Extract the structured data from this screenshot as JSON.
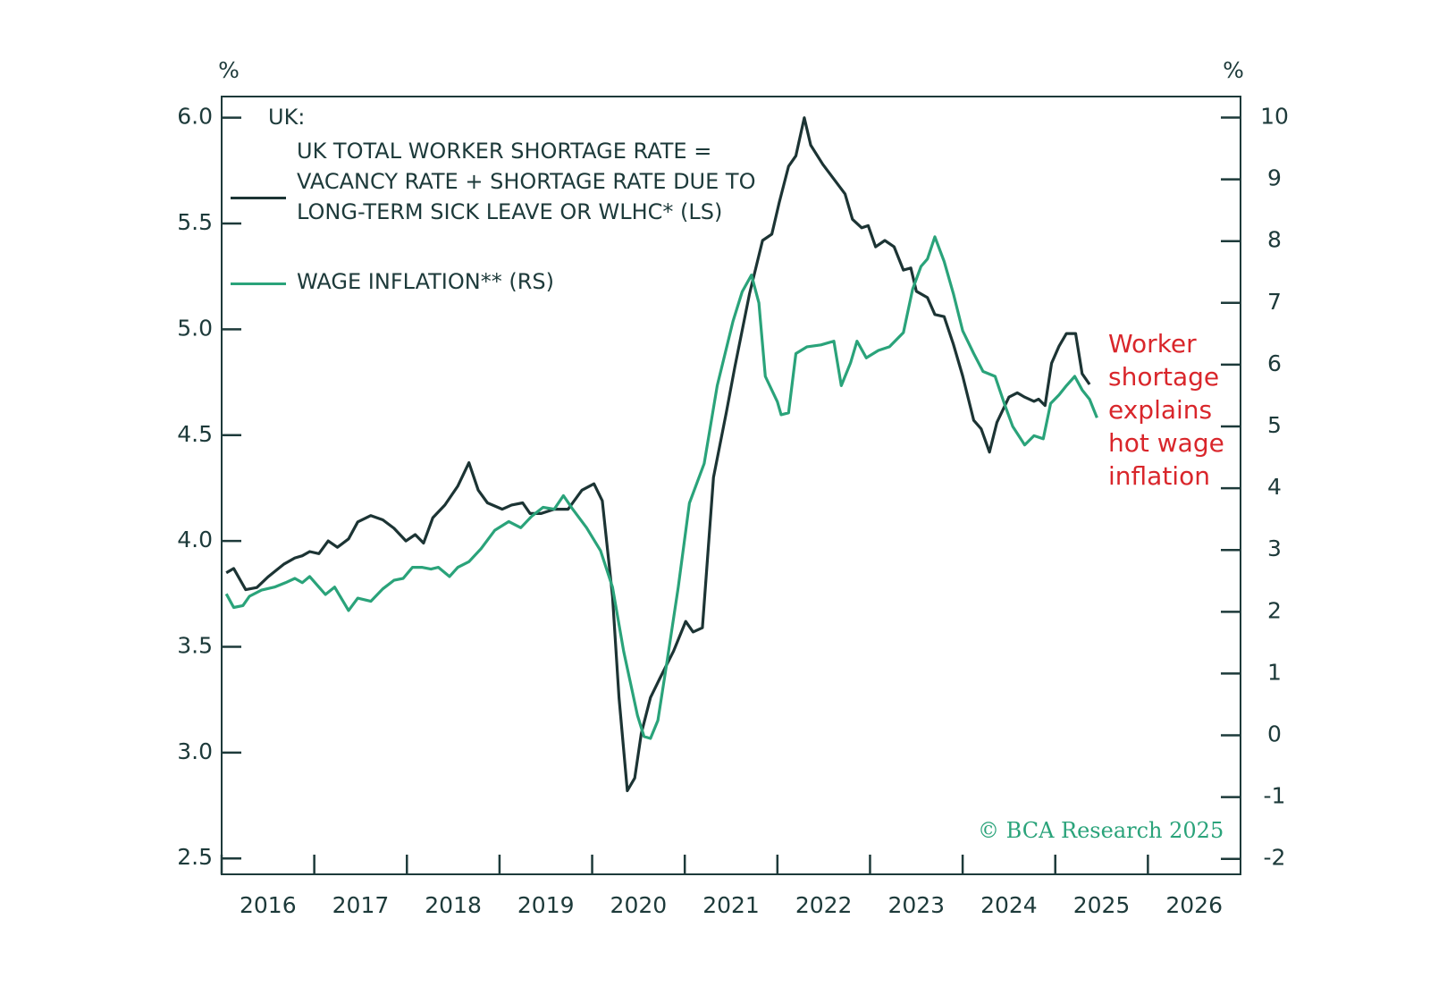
{
  "chart_data": {
    "type": "line",
    "ylabel": "%",
    "y2label": "%",
    "legend_title": "UK:",
    "annotation": "Worker shortage explains hot wage inflation",
    "source": "© BCA Research 2025",
    "xlim": [
      2016,
      2027
    ],
    "xticks": [
      2016,
      2017,
      2018,
      2019,
      2020,
      2021,
      2022,
      2023,
      2024,
      2025,
      2026
    ],
    "ylim": [
      2.425,
      6.1
    ],
    "yticks": [
      {
        "value": 6,
        "label": "6.0"
      },
      5.5,
      {
        "value": 5,
        "label": "5.0"
      },
      4.5,
      {
        "value": 4,
        "label": "4.0"
      },
      3.5,
      {
        "value": 3,
        "label": "3.0"
      },
      2.5
    ],
    "y2lim": [
      -2.25,
      10.34
    ],
    "y2ticks": [
      10,
      9,
      8,
      7,
      6,
      5,
      4,
      3,
      2,
      1,
      0,
      -1,
      -2
    ],
    "series": [
      {
        "name": "UK TOTAL WORKER SHORTAGE RATE = VACANCY RATE + SHORTAGE RATE DUE TO LONG-TERM SICK LEAVE OR WLHC* (LS)",
        "color": "#1c3434",
        "axis": "y",
        "x": [
          2016.05,
          2016.13,
          2016.26,
          2016.38,
          2016.5,
          2016.67,
          2016.79,
          2016.87,
          2016.95,
          2017.05,
          2017.15,
          2017.25,
          2017.37,
          2017.47,
          2017.61,
          2017.74,
          2017.86,
          2017.99,
          2018.09,
          2018.18,
          2018.28,
          2018.41,
          2018.55,
          2018.67,
          2018.77,
          2018.87,
          2019.03,
          2019.13,
          2019.25,
          2019.33,
          2019.45,
          2019.59,
          2019.74,
          2019.89,
          2020.02,
          2020.11,
          2020.22,
          2020.29,
          2020.38,
          2020.46,
          2020.53,
          2020.63,
          2020.73,
          2020.88,
          2021.01,
          2021.09,
          2021.19,
          2021.31,
          2021.45,
          2021.54,
          2021.7,
          2021.84,
          2021.94,
          2022.02,
          2022.12,
          2022.2,
          2022.29,
          2022.36,
          2022.49,
          2022.61,
          2022.73,
          2022.81,
          2022.91,
          2022.98,
          2023.06,
          2023.16,
          2023.26,
          2023.36,
          2023.44,
          2023.5,
          2023.62,
          2023.7,
          2023.8,
          2023.9,
          2024.0,
          2024.12,
          2024.2,
          2024.29,
          2024.37,
          2024.5,
          2024.59,
          2024.67,
          2024.77,
          2024.82,
          2024.89,
          2024.96,
          2025.04,
          2025.12,
          2025.22,
          2025.29,
          2025.37
        ],
        "values": [
          3.85,
          3.87,
          3.77,
          3.78,
          3.83,
          3.89,
          3.92,
          3.93,
          3.95,
          3.94,
          4.0,
          3.97,
          4.01,
          4.09,
          4.12,
          4.1,
          4.06,
          4.0,
          4.03,
          3.99,
          4.11,
          4.17,
          4.26,
          4.37,
          4.24,
          4.18,
          4.15,
          4.17,
          4.18,
          4.13,
          4.13,
          4.15,
          4.15,
          4.24,
          4.27,
          4.19,
          3.74,
          3.26,
          2.82,
          2.88,
          3.09,
          3.26,
          3.35,
          3.48,
          3.62,
          3.57,
          3.59,
          4.3,
          4.61,
          4.82,
          5.17,
          5.42,
          5.45,
          5.6,
          5.77,
          5.82,
          6.0,
          5.87,
          5.78,
          5.71,
          5.64,
          5.52,
          5.48,
          5.49,
          5.39,
          5.42,
          5.39,
          5.28,
          5.29,
          5.18,
          5.15,
          5.07,
          5.06,
          4.93,
          4.78,
          4.57,
          4.53,
          4.42,
          4.56,
          4.68,
          4.7,
          4.68,
          4.66,
          4.67,
          4.64,
          4.84,
          4.92,
          4.98,
          4.98,
          4.79,
          4.74
        ]
      },
      {
        "name": "WAGE INFLATION** (RS)",
        "color": "#2aa37a",
        "axis": "y2",
        "x": [
          2016.05,
          2016.13,
          2016.23,
          2016.3,
          2016.43,
          2016.57,
          2016.69,
          2016.79,
          2016.87,
          2016.95,
          2017.05,
          2017.12,
          2017.22,
          2017.37,
          2017.47,
          2017.61,
          2017.74,
          2017.86,
          2017.96,
          2018.06,
          2018.16,
          2018.26,
          2018.34,
          2018.46,
          2018.55,
          2018.67,
          2018.8,
          2018.95,
          2019.1,
          2019.23,
          2019.35,
          2019.47,
          2019.59,
          2019.69,
          2019.79,
          2019.94,
          2020.09,
          2020.22,
          2020.34,
          2020.49,
          2020.56,
          2020.63,
          2020.71,
          2020.81,
          2020.93,
          2021.05,
          2021.21,
          2021.35,
          2021.52,
          2021.62,
          2021.72,
          2021.8,
          2021.87,
          2022.0,
          2022.04,
          2022.12,
          2022.2,
          2022.32,
          2022.47,
          2022.61,
          2022.69,
          2022.79,
          2022.86,
          2022.96,
          2023.09,
          2023.21,
          2023.36,
          2023.46,
          2023.55,
          2023.62,
          2023.7,
          2023.8,
          2023.9,
          2024.0,
          2024.12,
          2024.22,
          2024.35,
          2024.45,
          2024.54,
          2024.67,
          2024.77,
          2024.87,
          2024.95,
          2025.04,
          2025.12,
          2025.21,
          2025.29,
          2025.37,
          2025.45
        ],
        "values": [
          2.29,
          2.07,
          2.1,
          2.25,
          2.35,
          2.4,
          2.47,
          2.54,
          2.47,
          2.57,
          2.4,
          2.28,
          2.4,
          2.02,
          2.22,
          2.17,
          2.37,
          2.51,
          2.54,
          2.72,
          2.72,
          2.69,
          2.72,
          2.57,
          2.72,
          2.81,
          3.02,
          3.32,
          3.46,
          3.36,
          3.55,
          3.69,
          3.66,
          3.88,
          3.66,
          3.36,
          2.99,
          2.4,
          1.36,
          0.32,
          -0.02,
          -0.05,
          0.24,
          1.21,
          2.4,
          3.76,
          4.4,
          5.66,
          6.7,
          7.18,
          7.45,
          7.0,
          5.81,
          5.4,
          5.19,
          5.22,
          6.18,
          6.29,
          6.32,
          6.38,
          5.66,
          6.03,
          6.38,
          6.11,
          6.23,
          6.29,
          6.52,
          7.22,
          7.59,
          7.71,
          8.07,
          7.67,
          7.15,
          6.55,
          6.18,
          5.89,
          5.81,
          5.37,
          5.0,
          4.7,
          4.85,
          4.8,
          5.37,
          5.51,
          5.66,
          5.81,
          5.59,
          5.44,
          5.14
        ]
      }
    ]
  }
}
